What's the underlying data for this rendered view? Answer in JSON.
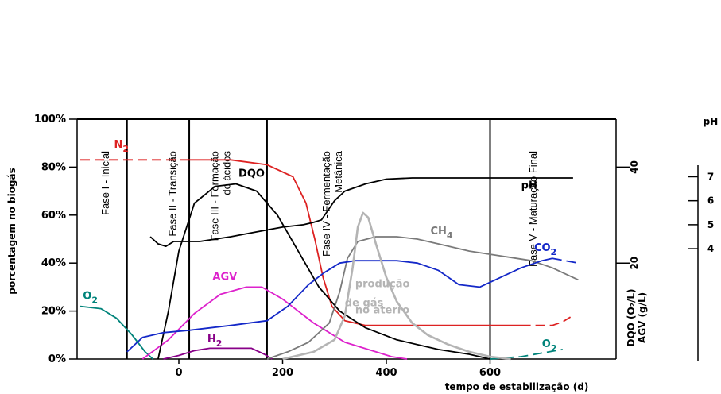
{
  "chart_data": {
    "type": "line",
    "title": "",
    "xlabel": "tempo de estabilização (d)",
    "ylabel": "porcentagem no biogás",
    "y2label_line1": "DQO (O₂/L)",
    "y2label_line2": "AGV (g/L)",
    "y3label": "pH",
    "xlim": [
      -190,
      800
    ],
    "ylim": [
      0,
      100
    ],
    "x_ticks": [
      "0",
      "200",
      "400",
      "600"
    ],
    "x_tick_values": [
      0,
      200,
      400,
      600
    ],
    "y_ticks": [
      "0%",
      "20%",
      "40%",
      "60%",
      "80%",
      "100%"
    ],
    "y_tick_values": [
      0,
      20,
      40,
      60,
      80,
      100
    ],
    "y2_ticks": [
      "20",
      "40"
    ],
    "y2_tick_pct": [
      40,
      80
    ],
    "ph_ticks": [
      "4",
      "5",
      "6",
      "7"
    ],
    "ph_tick_pct": [
      46,
      56,
      66,
      76
    ],
    "phase_boundaries": [
      -100,
      20,
      170,
      600
    ],
    "phases": [
      {
        "label": "Fase I - Inicial",
        "x": -135
      },
      {
        "label": "Fase II - Transição",
        "x": -5
      },
      {
        "label": "Fase III - Formação",
        "label2": "de ácidos",
        "x": 85
      },
      {
        "label": "Fase IV - Fermentação",
        "label2": "Metânica",
        "x": 300
      },
      {
        "label": "Fase V - Maturação Final",
        "x": 690
      }
    ],
    "series": [
      {
        "name": "N2",
        "label_main": "N",
        "label_sub": "2",
        "color": "#dd2222",
        "style": "dashed",
        "points": [
          [
            -190,
            83
          ],
          [
            20,
            83
          ],
          [
            20,
            83
          ]
        ]
      },
      {
        "name": "N2",
        "label_main": "N",
        "label_sub": "2",
        "color": "#dd2222",
        "style": "solid",
        "points": [
          [
            20,
            83
          ],
          [
            100,
            83
          ],
          [
            170,
            81
          ],
          [
            220,
            76
          ],
          [
            245,
            65
          ],
          [
            262,
            50
          ],
          [
            278,
            34
          ],
          [
            295,
            22
          ],
          [
            320,
            16
          ],
          [
            360,
            14
          ],
          [
            400,
            14
          ],
          [
            500,
            14
          ],
          [
            600,
            14
          ],
          [
            660,
            14
          ]
        ]
      },
      {
        "name": "N2",
        "label_main": "N",
        "label_sub": "2",
        "color": "#dd2222",
        "style": "dashed",
        "points": [
          [
            660,
            14
          ],
          [
            720,
            14
          ],
          [
            740,
            15.5
          ],
          [
            755,
            17.5
          ]
        ]
      },
      {
        "name": "O2",
        "label_main": "O",
        "label_sub": "2",
        "color": "#00837a",
        "style": "solid",
        "points": [
          [
            -190,
            22
          ],
          [
            -150,
            21
          ],
          [
            -120,
            17
          ],
          [
            -90,
            10
          ],
          [
            -65,
            3
          ],
          [
            -50,
            0
          ]
        ]
      },
      {
        "name": "O2",
        "label_main": "O",
        "label_sub": "2",
        "color": "#00837a",
        "style": "dashed",
        "points": [
          [
            600,
            0
          ],
          [
            660,
            1
          ],
          [
            700,
            2.5
          ],
          [
            740,
            4
          ]
        ]
      },
      {
        "name": "H2",
        "label_main": "H",
        "label_sub": "2",
        "color": "#880088",
        "style": "solid",
        "points": [
          [
            -30,
            0
          ],
          [
            0,
            1.5
          ],
          [
            30,
            3.5
          ],
          [
            60,
            4.5
          ],
          [
            100,
            4.5
          ],
          [
            140,
            4.5
          ],
          [
            165,
            2
          ],
          [
            180,
            0
          ]
        ]
      },
      {
        "name": "AGV",
        "label_main": "AGV",
        "color": "#dd22cc",
        "style": "solid",
        "points": [
          [
            -70,
            0
          ],
          [
            -20,
            8
          ],
          [
            30,
            19
          ],
          [
            80,
            27
          ],
          [
            130,
            30
          ],
          [
            160,
            30
          ],
          [
            200,
            25
          ],
          [
            260,
            15
          ],
          [
            320,
            7
          ],
          [
            380,
            3
          ],
          [
            410,
            1
          ],
          [
            440,
            0
          ]
        ]
      },
      {
        "name": "DQO",
        "label_main": "DQO",
        "color": "#000000",
        "style": "solid",
        "points": [
          [
            -40,
            0
          ],
          [
            -20,
            20
          ],
          [
            0,
            45
          ],
          [
            30,
            65
          ],
          [
            70,
            72
          ],
          [
            110,
            73
          ],
          [
            150,
            70
          ],
          [
            190,
            60
          ],
          [
            230,
            45
          ],
          [
            270,
            30
          ],
          [
            310,
            20
          ],
          [
            360,
            13
          ],
          [
            420,
            8
          ],
          [
            500,
            4
          ],
          [
            560,
            2
          ],
          [
            600,
            0
          ]
        ]
      },
      {
        "name": "pH",
        "label_main": "pH",
        "color": "#000000",
        "style": "solid",
        "points": [
          [
            -55,
            51
          ],
          [
            -40,
            48
          ],
          [
            -25,
            47
          ],
          [
            -10,
            49
          ],
          [
            40,
            49
          ],
          [
            100,
            51
          ],
          [
            150,
            53
          ],
          [
            200,
            55
          ],
          [
            240,
            56
          ],
          [
            260,
            57
          ],
          [
            275,
            58
          ],
          [
            300,
            66
          ],
          [
            320,
            70
          ],
          [
            360,
            73
          ],
          [
            400,
            75
          ],
          [
            450,
            75.5
          ],
          [
            500,
            75.5
          ],
          [
            600,
            75.5
          ],
          [
            700,
            75.5
          ],
          [
            760,
            75.5
          ]
        ]
      },
      {
        "name": "CH4",
        "label_main": "CH",
        "label_sub": "4",
        "color": "#7a7a7a",
        "style": "solid",
        "points": [
          [
            170,
            0
          ],
          [
            210,
            3
          ],
          [
            250,
            7
          ],
          [
            290,
            15
          ],
          [
            310,
            28
          ],
          [
            325,
            42
          ],
          [
            345,
            49
          ],
          [
            380,
            51
          ],
          [
            420,
            51
          ],
          [
            460,
            50
          ],
          [
            500,
            48
          ],
          [
            560,
            45
          ],
          [
            620,
            43
          ],
          [
            680,
            41
          ],
          [
            720,
            38
          ],
          [
            750,
            35
          ],
          [
            770,
            33
          ]
        ]
      },
      {
        "name": "CO2",
        "label_main": "CO",
        "label_sub": "2",
        "color": "#1428c8",
        "style": "solid",
        "points": [
          [
            -100,
            3
          ],
          [
            -70,
            9
          ],
          [
            -30,
            11
          ],
          [
            20,
            12
          ],
          [
            100,
            14
          ],
          [
            170,
            16
          ],
          [
            210,
            22
          ],
          [
            250,
            31
          ],
          [
            280,
            36
          ],
          [
            310,
            40
          ],
          [
            340,
            41
          ],
          [
            380,
            41
          ],
          [
            420,
            41
          ],
          [
            460,
            40
          ],
          [
            500,
            37
          ],
          [
            540,
            31
          ],
          [
            580,
            30
          ],
          [
            620,
            34
          ],
          [
            660,
            38
          ],
          [
            700,
            41
          ],
          [
            720,
            42
          ]
        ]
      },
      {
        "name": "CO2",
        "label_main": "CO",
        "label_sub": "2",
        "color": "#1428c8",
        "style": "dashed",
        "points": [
          [
            720,
            42
          ],
          [
            745,
            41
          ],
          [
            770,
            40
          ]
        ]
      },
      {
        "name": "produção de gás no aterro",
        "label_main": "produção",
        "color": "#b4b4b4",
        "style": "solid",
        "points": [
          [
            200,
            0
          ],
          [
            260,
            3
          ],
          [
            300,
            8
          ],
          [
            320,
            18
          ],
          [
            335,
            38
          ],
          [
            345,
            55
          ],
          [
            355,
            61
          ],
          [
            365,
            59
          ],
          [
            380,
            48
          ],
          [
            400,
            34
          ],
          [
            420,
            24
          ],
          [
            450,
            15
          ],
          [
            480,
            10
          ],
          [
            520,
            6
          ],
          [
            560,
            3
          ],
          [
            600,
            1
          ],
          [
            640,
            0
          ]
        ]
      }
    ],
    "annotations": [
      {
        "text_main": "N",
        "text_sub": "2",
        "color": "#dd2222",
        "x": -125,
        "y": 88
      },
      {
        "text_main": "O",
        "text_sub": "2",
        "color": "#00837a",
        "x": -185,
        "y": 25
      },
      {
        "text_main": "H",
        "text_sub": "2",
        "color": "#880088",
        "x": 55,
        "y": 7
      },
      {
        "text_main": "AGV",
        "color": "#dd22cc",
        "x": 65,
        "y": 33
      },
      {
        "text_main": "DQO",
        "color": "#000000",
        "x": 115,
        "y": 76
      },
      {
        "text_main": "pH",
        "color": "#000000",
        "x": 660,
        "y": 71
      },
      {
        "text_main": "CH",
        "text_sub": "4",
        "color": "#7a7a7a",
        "x": 485,
        "y": 52
      },
      {
        "text_main": "CO",
        "text_sub": "2",
        "color": "#1428c8",
        "x": 685,
        "y": 45
      },
      {
        "text_main": "O",
        "text_sub": "2",
        "color": "#00837a",
        "x": 700,
        "y": 5
      },
      {
        "text_main": "produção",
        "color": "#b4b4b4",
        "x": 340,
        "y": 30
      },
      {
        "text_main": "de gás",
        "color": "#b4b4b4",
        "x": 320,
        "y": 22
      },
      {
        "text_main": "no aterro",
        "color": "#b4b4b4",
        "x": 340,
        "y": 19
      }
    ]
  }
}
